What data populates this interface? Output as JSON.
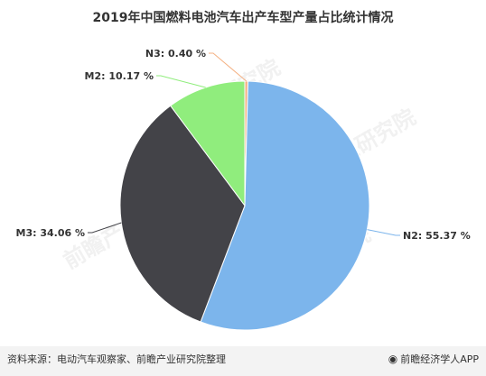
{
  "title": "2019年中国燃料电池汽车出产车型产量占比统计情况",
  "watermark": "前瞻产业研究院",
  "footer": {
    "source": "资料来源：电动汽车观察家、前瞻产业研究院整理",
    "brand": "前瞻经济学人APP",
    "brand_icon": "qianzhan-logo-icon"
  },
  "chart_data": {
    "type": "pie",
    "title": "2019年中国燃料电池汽车出产车型产量占比统计情况",
    "slices": [
      {
        "name": "N3",
        "value": 0.4,
        "label": "N3: 0.40 %",
        "color": "#F4B183"
      },
      {
        "name": "N2",
        "value": 55.37,
        "label": "N2: 55.37 %",
        "color": "#7CB5EC"
      },
      {
        "name": "M3",
        "value": 34.06,
        "label": "M3: 34.06 %",
        "color": "#434348"
      },
      {
        "name": "M2",
        "value": 10.17,
        "label": "M2: 10.17 %",
        "color": "#90ED7D"
      }
    ]
  }
}
